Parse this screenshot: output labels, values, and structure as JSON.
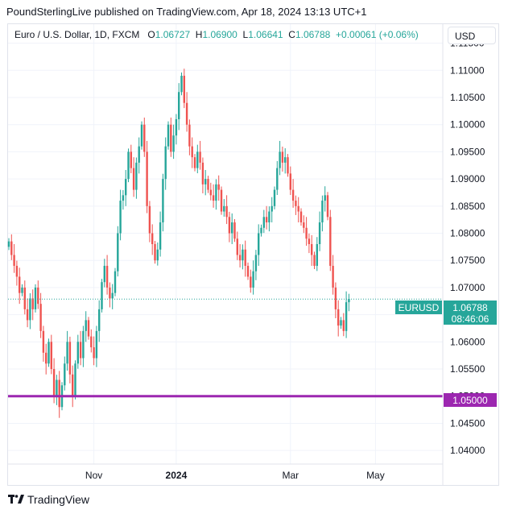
{
  "header": {
    "publisher_line": "PoundSterlingLive published on TradingView.com, Apr 18, 2024 13:13 UTC+1"
  },
  "legend": {
    "symbol": "Euro / U.S. Dollar, 1D, FXCM",
    "o_label": "O",
    "o_value": "1.06727",
    "h_label": "H",
    "h_value": "1.06900",
    "l_label": "L",
    "l_value": "1.06641",
    "c_label": "C",
    "c_value": "1.06788",
    "change": "+0.00061 (+0.06%)"
  },
  "currency_button": "USD",
  "price_tag": {
    "symbol": "EURUSD",
    "price": "1.06788",
    "countdown": "08:46:06"
  },
  "level_tag": "1.05000",
  "footer": {
    "brand": "TradingView"
  },
  "colors": {
    "up": "#26a69a",
    "down": "#ef5350",
    "level": "#9c27b0",
    "text": "#131722",
    "grid": "#f0f3fa"
  },
  "chart_data": {
    "type": "candlestick",
    "title": "Euro / U.S. Dollar, 1D, FXCM",
    "xlabel": "",
    "ylabel": "",
    "ylim": [
      1.0375,
      1.1185
    ],
    "y_ticks": [
      "1.04000",
      "1.04500",
      "1.05000",
      "1.05500",
      "1.06000",
      "1.06500",
      "1.07000",
      "1.07500",
      "1.08000",
      "1.08500",
      "1.09000",
      "1.09500",
      "1.10000",
      "1.10500",
      "1.11000",
      "1.11500"
    ],
    "x_ticks": [
      {
        "label": "Nov",
        "index": 32,
        "bold": false
      },
      {
        "label": "2024",
        "index": 63,
        "bold": true
      },
      {
        "label": "Mar",
        "index": 106,
        "bold": false
      },
      {
        "label": "May",
        "index": 138,
        "bold": false
      }
    ],
    "horizontal_level": 1.05,
    "last_price": 1.06788,
    "closes": [
      1.0785,
      1.076,
      1.074,
      1.072,
      1.069,
      1.07,
      1.066,
      1.064,
      1.068,
      1.066,
      1.07,
      1.067,
      1.062,
      1.058,
      1.056,
      1.06,
      1.055,
      1.05,
      1.053,
      1.048,
      1.052,
      1.056,
      1.06,
      1.054,
      1.05,
      1.056,
      1.06,
      1.057,
      1.062,
      1.064,
      1.061,
      1.059,
      1.057,
      1.062,
      1.066,
      1.071,
      1.074,
      1.07,
      1.068,
      1.069,
      1.073,
      1.08,
      1.086,
      1.087,
      1.09,
      1.095,
      1.092,
      1.088,
      1.093,
      1.096,
      1.1,
      1.095,
      1.085,
      1.08,
      1.078,
      1.075,
      1.077,
      1.082,
      1.09,
      1.096,
      1.1,
      1.095,
      1.098,
      1.101,
      1.106,
      1.109,
      1.104,
      1.1,
      1.096,
      1.094,
      1.092,
      1.095,
      1.093,
      1.089,
      1.09,
      1.088,
      1.087,
      1.086,
      1.089,
      1.088,
      1.084,
      1.085,
      1.083,
      1.08,
      1.082,
      1.079,
      1.076,
      1.075,
      1.077,
      1.074,
      1.072,
      1.07,
      1.073,
      1.076,
      1.08,
      1.081,
      1.083,
      1.082,
      1.084,
      1.085,
      1.088,
      1.092,
      1.095,
      1.093,
      1.094,
      1.091,
      1.088,
      1.086,
      1.085,
      1.084,
      1.082,
      1.081,
      1.079,
      1.078,
      1.076,
      1.074,
      1.078,
      1.082,
      1.086,
      1.087,
      1.083,
      1.074,
      1.07,
      1.066,
      1.063,
      1.064,
      1.062,
      1.0673,
      1.0679
    ]
  }
}
